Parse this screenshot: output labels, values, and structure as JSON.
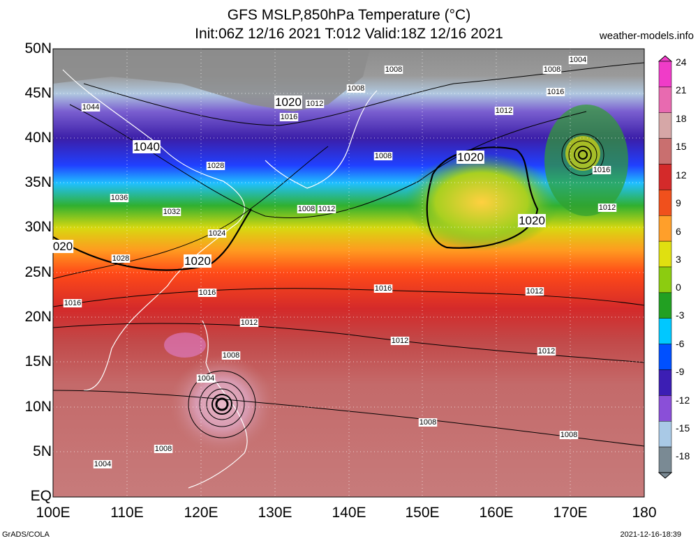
{
  "header": {
    "title_line1": "GFS MSLP,850hPa Temperature (°C)",
    "title_line2": "Init:06Z 12/16 2021 T:012 Valid:18Z 12/16 2021",
    "site": "weather-models.info"
  },
  "axes": {
    "lat_labels": [
      "50N",
      "45N",
      "40N",
      "35N",
      "30N",
      "25N",
      "20N",
      "15N",
      "10N",
      "5N",
      "EQ"
    ],
    "lon_labels": [
      "100E",
      "110E",
      "120E",
      "130E",
      "140E",
      "150E",
      "160E",
      "170E",
      "180"
    ]
  },
  "colorbar": {
    "labels": [
      "24",
      "21",
      "18",
      "15",
      "12",
      "9",
      "6",
      "3",
      "0",
      "-3",
      "-6",
      "-9",
      "-12",
      "-15",
      "-18"
    ],
    "colors": [
      "#f03cc8",
      "#e86ab0",
      "#d6a7a7",
      "#c96f6f",
      "#d42a2a",
      "#f0501c",
      "#ff9f2a",
      "#e0e010",
      "#8ccc10",
      "#22a022",
      "#00c8ff",
      "#0050ff",
      "#3c1eb4",
      "#8a4fd8",
      "#a9c9e6",
      "#7a8a94"
    ]
  },
  "pressure_labels": {
    "highs": [
      "1040",
      "1020",
      "1020",
      "1020",
      "1020",
      "020"
    ],
    "isobars": [
      "1044",
      "1036",
      "1032",
      "1028",
      "1028",
      "1024",
      "1016",
      "1016",
      "1016",
      "1016",
      "1012",
      "1012",
      "1012",
      "1012",
      "1012",
      "1012",
      "1012",
      "1008",
      "1008",
      "1008",
      "1008",
      "1008",
      "1008",
      "1008",
      "1008",
      "1008",
      "1004",
      "1004",
      "1004",
      "1016",
      "1012",
      "1016"
    ]
  },
  "footer": {
    "left": "GrADS/COLA",
    "right": "2021-12-16-18:39"
  }
}
